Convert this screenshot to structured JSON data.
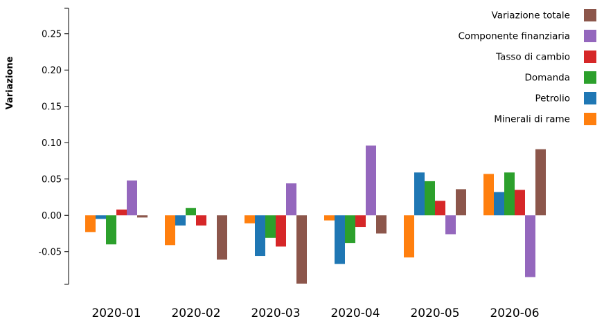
{
  "chart_data": {
    "type": "bar",
    "ylabel": "Variazione",
    "xlabel": "",
    "ylim": [
      -0.095,
      0.285
    ],
    "yticks": [
      -0.05,
      0.0,
      0.05,
      0.1,
      0.15,
      0.2,
      0.25
    ],
    "ytick_labels": [
      "-0.05",
      "0.00",
      "0.05",
      "0.10",
      "0.15",
      "0.20",
      "0.25"
    ],
    "categories": [
      "2020-01",
      "2020-02",
      "2020-03",
      "2020-04",
      "2020-05",
      "2020-06"
    ],
    "legend_position": "top-right",
    "series": [
      {
        "name": "Minerali di rame",
        "color": "#ff7f0e",
        "values": [
          -0.023,
          -0.041,
          -0.011,
          -0.007,
          -0.058,
          0.057
        ]
      },
      {
        "name": "Petrolio",
        "color": "#1f77b4",
        "values": [
          -0.005,
          -0.014,
          -0.056,
          -0.067,
          0.059,
          0.032
        ]
      },
      {
        "name": "Domanda",
        "color": "#2ca02c",
        "values": [
          -0.04,
          0.01,
          -0.031,
          -0.038,
          0.047,
          0.059
        ]
      },
      {
        "name": "Tasso di cambio",
        "color": "#d62728",
        "values": [
          0.008,
          -0.014,
          -0.043,
          -0.016,
          0.02,
          0.035
        ]
      },
      {
        "name": "Componente finanziaria",
        "color": "#9467bd",
        "values": [
          0.048,
          0.0,
          0.044,
          0.096,
          -0.026,
          -0.085
        ]
      },
      {
        "name": "Variazione totale",
        "color": "#8c564b",
        "values": [
          -0.003,
          -0.061,
          -0.094,
          -0.025,
          0.036,
          0.091
        ]
      }
    ]
  }
}
